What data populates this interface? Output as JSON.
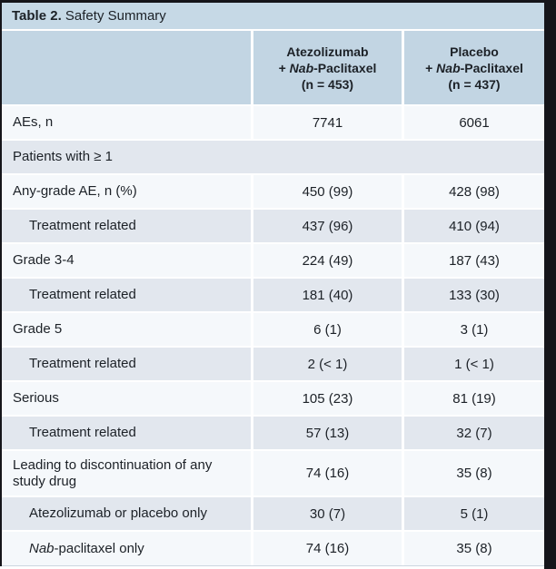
{
  "colors": {
    "title_bg": "#c6d9e6",
    "header_bg": "#c2d5e3",
    "row_light": "#f5f8fb",
    "row_dark": "#e2e7ee",
    "edge_dark": "#15151a",
    "separator": "#ffffff",
    "text": "#1c2127"
  },
  "title": {
    "bold": "Table 2.",
    "rest": " Safety Summary"
  },
  "table": {
    "columns": [
      {
        "lines": [
          [
            {
              "t": "Atezolizumab"
            }
          ],
          [
            {
              "t": "+ "
            },
            {
              "t": "Nab",
              "i": true
            },
            {
              "t": "-Paclitaxel"
            }
          ],
          [
            {
              "t": "(n = 453)"
            }
          ]
        ]
      },
      {
        "lines": [
          [
            {
              "t": "Placebo"
            }
          ],
          [
            {
              "t": "+ "
            },
            {
              "t": "Nab",
              "i": true
            },
            {
              "t": "-Paclitaxel"
            }
          ],
          [
            {
              "t": "(n = 437)"
            }
          ]
        ]
      }
    ],
    "rows": [
      {
        "label": [
          {
            "t": "AEs, n"
          }
        ],
        "indent": 0,
        "span": false,
        "tall": false,
        "values": [
          "7741",
          "6061"
        ]
      },
      {
        "label": [
          {
            "t": "Patients with ≥ 1"
          }
        ],
        "indent": 0,
        "span": true,
        "tall": false,
        "values": []
      },
      {
        "label": [
          {
            "t": "Any-grade AE, n (%)"
          }
        ],
        "indent": 0,
        "span": false,
        "tall": false,
        "values": [
          "450 (99)",
          "428 (98)"
        ]
      },
      {
        "label": [
          {
            "t": "Treatment related"
          }
        ],
        "indent": 1,
        "span": false,
        "tall": false,
        "values": [
          "437 (96)",
          "410 (94)"
        ]
      },
      {
        "label": [
          {
            "t": "Grade 3-4"
          }
        ],
        "indent": 0,
        "span": false,
        "tall": false,
        "values": [
          "224 (49)",
          "187 (43)"
        ]
      },
      {
        "label": [
          {
            "t": "Treatment related"
          }
        ],
        "indent": 1,
        "span": false,
        "tall": false,
        "values": [
          "181 (40)",
          "133 (30)"
        ]
      },
      {
        "label": [
          {
            "t": "Grade 5"
          }
        ],
        "indent": 0,
        "span": false,
        "tall": false,
        "values": [
          "6 (1)",
          "3 (1)"
        ]
      },
      {
        "label": [
          {
            "t": "Treatment related"
          }
        ],
        "indent": 1,
        "span": false,
        "tall": false,
        "values": [
          "2 (< 1)",
          "1 (< 1)"
        ]
      },
      {
        "label": [
          {
            "t": "Serious"
          }
        ],
        "indent": 0,
        "span": false,
        "tall": false,
        "values": [
          "105 (23)",
          "81 (19)"
        ]
      },
      {
        "label": [
          {
            "t": "Treatment related"
          }
        ],
        "indent": 1,
        "span": false,
        "tall": false,
        "values": [
          "57 (13)",
          "32 (7)"
        ]
      },
      {
        "label": [
          {
            "t": "Leading to discontinuation of any study drug"
          }
        ],
        "indent": 0,
        "span": false,
        "tall": true,
        "values": [
          "74 (16)",
          "35 (8)"
        ]
      },
      {
        "label": [
          {
            "t": "Atezolizumab or placebo only"
          }
        ],
        "indent": 1,
        "span": false,
        "tall": false,
        "values": [
          "30 (7)",
          "5 (1)"
        ]
      },
      {
        "label": [
          {
            "t": "Nab",
            "i": true
          },
          {
            "t": "-paclitaxel only"
          }
        ],
        "indent": 1,
        "span": false,
        "tall": false,
        "values": [
          "74 (16)",
          "35 (8)"
        ]
      }
    ]
  }
}
